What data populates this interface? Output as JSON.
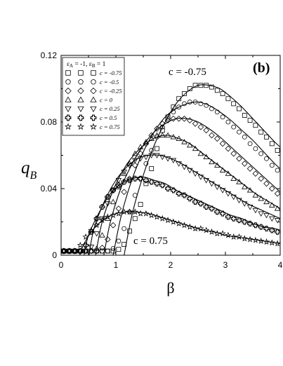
{
  "chart_data": {
    "type": "scatter",
    "panel_label": "(b)",
    "xlabel": "β",
    "ylabel": {
      "main": "q",
      "sub": "B"
    },
    "xlim": [
      0,
      4
    ],
    "ylim": [
      0,
      0.12
    ],
    "xticks": [
      0,
      1,
      2,
      3,
      4
    ],
    "xtick_labels": [
      "0",
      "1",
      "2",
      "3",
      "4"
    ],
    "yticks": [
      0,
      0.04,
      0.08,
      0.12
    ],
    "ytick_labels": [
      "0",
      "0.04",
      "0.08",
      "0.12"
    ],
    "grid": false,
    "legend": {
      "placement": "top-left",
      "header": {
        "sym1": "ε",
        "sub1": "A",
        "mid": " = -1, ",
        "sym2": "ε",
        "sub2": "B",
        "end": " = 1"
      },
      "entries": [
        {
          "marker": "square",
          "label": "c = -0.75"
        },
        {
          "marker": "circle",
          "label": "c = -0.5"
        },
        {
          "marker": "diamond",
          "label": "c = -0.25"
        },
        {
          "marker": "triangle-up",
          "label": "c = 0"
        },
        {
          "marker": "triangle-down",
          "label": "c = 0.25"
        },
        {
          "marker": "cross",
          "label": "c = 0.5"
        },
        {
          "marker": "star",
          "label": "c = 0.75"
        }
      ]
    },
    "annotations": [
      {
        "text": "c = -0.75",
        "x": 2.05,
        "y": 0.106
      },
      {
        "text": "c = 0.75",
        "x": 1.05,
        "y": 0.007
      }
    ],
    "series": [
      {
        "c": -0.75,
        "marker": "square",
        "x": [
          0.05,
          0.15,
          0.25,
          0.35,
          0.45,
          0.55,
          0.65,
          0.75,
          0.85,
          0.95,
          1.05,
          1.15,
          1.25,
          1.35,
          1.45,
          1.55,
          1.65,
          1.75,
          1.85,
          1.95,
          2.05,
          2.15,
          2.25,
          2.35,
          2.45,
          2.55,
          2.65,
          2.75,
          2.85,
          2.95,
          3.05,
          3.15,
          3.25,
          3.35,
          3.45,
          3.55,
          3.65,
          3.75,
          3.85,
          3.95
        ],
        "y": [
          0.0025,
          0.0025,
          0.0025,
          0.0025,
          0.0025,
          0.0025,
          0.0025,
          0.0025,
          0.0025,
          0.0025,
          0.0035,
          0.0065,
          0.0145,
          0.022,
          0.0305,
          0.043,
          0.052,
          0.064,
          0.075,
          0.083,
          0.089,
          0.094,
          0.097,
          0.1,
          0.102,
          0.102,
          0.102,
          0.101,
          0.099,
          0.097,
          0.094,
          0.091,
          0.088,
          0.084,
          0.081,
          0.078,
          0.074,
          0.071,
          0.067,
          0.063
        ]
      },
      {
        "c": -0.5,
        "marker": "circle",
        "x": [
          0.05,
          0.15,
          0.25,
          0.35,
          0.45,
          0.55,
          0.65,
          0.75,
          0.85,
          0.95,
          1.05,
          1.15,
          1.25,
          1.35,
          1.45,
          1.55,
          1.65,
          1.75,
          1.85,
          1.95,
          2.05,
          2.15,
          2.25,
          2.35,
          2.45,
          2.55,
          2.65,
          2.75,
          2.85,
          2.95,
          3.05,
          3.15,
          3.25,
          3.35,
          3.45,
          3.55,
          3.65,
          3.75,
          3.85,
          3.95
        ],
        "y": [
          0.0025,
          0.0025,
          0.0025,
          0.0025,
          0.0025,
          0.0025,
          0.0025,
          0.0025,
          0.0025,
          0.004,
          0.0085,
          0.016,
          0.026,
          0.036,
          0.046,
          0.055,
          0.063,
          0.071,
          0.077,
          0.082,
          0.086,
          0.089,
          0.091,
          0.092,
          0.092,
          0.091,
          0.09,
          0.088,
          0.086,
          0.083,
          0.08,
          0.077,
          0.074,
          0.071,
          0.067,
          0.064,
          0.061,
          0.058,
          0.054,
          0.051
        ]
      },
      {
        "c": -0.25,
        "marker": "diamond",
        "x": [
          0.05,
          0.15,
          0.25,
          0.35,
          0.45,
          0.55,
          0.65,
          0.75,
          0.85,
          0.95,
          1.05,
          1.15,
          1.25,
          1.35,
          1.45,
          1.55,
          1.65,
          1.75,
          1.85,
          1.95,
          2.05,
          2.15,
          2.25,
          2.35,
          2.45,
          2.55,
          2.65,
          2.75,
          2.85,
          2.95,
          3.05,
          3.15,
          3.25,
          3.35,
          3.45,
          3.55,
          3.65,
          3.75,
          3.85,
          3.95
        ],
        "y": [
          0.0025,
          0.0025,
          0.0025,
          0.0025,
          0.0025,
          0.0025,
          0.0025,
          0.0045,
          0.0095,
          0.018,
          0.028,
          0.038,
          0.046,
          0.054,
          0.061,
          0.067,
          0.072,
          0.076,
          0.079,
          0.081,
          0.082,
          0.082,
          0.082,
          0.081,
          0.079,
          0.077,
          0.075,
          0.072,
          0.07,
          0.067,
          0.064,
          0.061,
          0.058,
          0.055,
          0.052,
          0.049,
          0.046,
          0.043,
          0.04,
          0.037
        ]
      },
      {
        "c": 0,
        "marker": "triangle-up",
        "x": [
          0.05,
          0.15,
          0.25,
          0.35,
          0.45,
          0.55,
          0.65,
          0.75,
          0.85,
          0.95,
          1.05,
          1.15,
          1.25,
          1.35,
          1.45,
          1.55,
          1.65,
          1.75,
          1.85,
          1.95,
          2.05,
          2.15,
          2.25,
          2.35,
          2.45,
          2.55,
          2.65,
          2.75,
          2.85,
          2.95,
          3.05,
          3.15,
          3.25,
          3.35,
          3.45,
          3.55,
          3.65,
          3.75,
          3.85,
          3.95
        ],
        "y": [
          0.0025,
          0.0025,
          0.0025,
          0.0025,
          0.0025,
          0.0025,
          0.004,
          0.012,
          0.022,
          0.032,
          0.041,
          0.049,
          0.055,
          0.061,
          0.065,
          0.068,
          0.07,
          0.072,
          0.072,
          0.072,
          0.071,
          0.07,
          0.068,
          0.066,
          0.064,
          0.061,
          0.059,
          0.056,
          0.054,
          0.051,
          0.049,
          0.046,
          0.044,
          0.041,
          0.039,
          0.036,
          0.034,
          0.032,
          0.03,
          0.028
        ]
      },
      {
        "c": 0.25,
        "marker": "triangle-down",
        "x": [
          0.05,
          0.15,
          0.25,
          0.35,
          0.45,
          0.55,
          0.65,
          0.75,
          0.85,
          0.95,
          1.05,
          1.15,
          1.25,
          1.35,
          1.45,
          1.55,
          1.65,
          1.75,
          1.85,
          1.95,
          2.05,
          2.15,
          2.25,
          2.35,
          2.45,
          2.55,
          2.65,
          2.75,
          2.85,
          2.95,
          3.05,
          3.15,
          3.25,
          3.35,
          3.45,
          3.55,
          3.65,
          3.75,
          3.85,
          3.95
        ],
        "y": [
          0.0025,
          0.0025,
          0.0025,
          0.0025,
          0.0025,
          0.005,
          0.013,
          0.022,
          0.031,
          0.039,
          0.045,
          0.05,
          0.054,
          0.057,
          0.058,
          0.059,
          0.06,
          0.06,
          0.059,
          0.058,
          0.057,
          0.055,
          0.053,
          0.051,
          0.049,
          0.047,
          0.045,
          0.043,
          0.041,
          0.039,
          0.037,
          0.035,
          0.033,
          0.031,
          0.029,
          0.027,
          0.025,
          0.024,
          0.022,
          0.021
        ]
      },
      {
        "c": 0.5,
        "marker": "cross",
        "x": [
          0.05,
          0.15,
          0.25,
          0.35,
          0.45,
          0.55,
          0.65,
          0.75,
          0.85,
          0.95,
          1.05,
          1.15,
          1.25,
          1.35,
          1.45,
          1.55,
          1.65,
          1.75,
          1.85,
          1.95,
          2.05,
          2.15,
          2.25,
          2.35,
          2.45,
          2.55,
          2.65,
          2.75,
          2.85,
          2.95,
          3.05,
          3.15,
          3.25,
          3.35,
          3.45,
          3.55,
          3.65,
          3.75,
          3.85,
          3.95
        ],
        "y": [
          0.0025,
          0.0025,
          0.0025,
          0.0025,
          0.006,
          0.014,
          0.022,
          0.029,
          0.035,
          0.039,
          0.042,
          0.044,
          0.045,
          0.046,
          0.046,
          0.045,
          0.044,
          0.043,
          0.042,
          0.04,
          0.039,
          0.037,
          0.036,
          0.034,
          0.032,
          0.031,
          0.029,
          0.028,
          0.026,
          0.025,
          0.023,
          0.022,
          0.021,
          0.02,
          0.019,
          0.018,
          0.017,
          0.016,
          0.015,
          0.014
        ]
      },
      {
        "c": 0.75,
        "marker": "star",
        "x": [
          0.05,
          0.15,
          0.25,
          0.35,
          0.45,
          0.55,
          0.65,
          0.75,
          0.85,
          0.95,
          1.05,
          1.15,
          1.25,
          1.35,
          1.45,
          1.55,
          1.65,
          1.75,
          1.85,
          1.95,
          2.05,
          2.15,
          2.25,
          2.35,
          2.45,
          2.55,
          2.65,
          2.75,
          2.85,
          2.95,
          3.05,
          3.15,
          3.25,
          3.35,
          3.45,
          3.55,
          3.65,
          3.75,
          3.85,
          3.95
        ],
        "y": [
          0.0025,
          0.0025,
          0.0025,
          0.006,
          0.011,
          0.015,
          0.018,
          0.021,
          0.023,
          0.024,
          0.025,
          0.026,
          0.026,
          0.026,
          0.025,
          0.025,
          0.024,
          0.023,
          0.022,
          0.021,
          0.02,
          0.019,
          0.018,
          0.017,
          0.016,
          0.016,
          0.015,
          0.014,
          0.013,
          0.013,
          0.012,
          0.011,
          0.011,
          0.01,
          0.0095,
          0.009,
          0.0085,
          0.008,
          0.0075,
          0.007
        ]
      }
    ],
    "curves": [
      {
        "c": -0.75,
        "x": [
          1.15,
          1.3,
          1.5,
          1.7,
          1.9,
          2.1,
          2.3,
          2.5,
          2.7,
          2.9,
          3.1,
          3.3,
          3.5,
          3.7,
          3.9,
          4.0
        ],
        "y": [
          0.0,
          0.025,
          0.048,
          0.066,
          0.08,
          0.091,
          0.098,
          0.102,
          0.102,
          0.1,
          0.095,
          0.089,
          0.082,
          0.075,
          0.068,
          0.065
        ]
      },
      {
        "c": -0.5,
        "x": [
          0.95,
          1.1,
          1.3,
          1.5,
          1.7,
          1.9,
          2.1,
          2.3,
          2.5,
          2.7,
          2.9,
          3.1,
          3.3,
          3.5,
          3.7,
          3.9,
          4.0
        ],
        "y": [
          0.0,
          0.024,
          0.046,
          0.062,
          0.074,
          0.083,
          0.088,
          0.091,
          0.092,
          0.09,
          0.086,
          0.081,
          0.075,
          0.069,
          0.062,
          0.055,
          0.052
        ]
      },
      {
        "c": -0.25,
        "x": [
          0.78,
          0.9,
          1.1,
          1.3,
          1.5,
          1.7,
          1.9,
          2.1,
          2.3,
          2.5,
          2.7,
          2.9,
          3.1,
          3.3,
          3.5,
          3.7,
          3.9,
          4.0
        ],
        "y": [
          0.0,
          0.02,
          0.041,
          0.055,
          0.066,
          0.074,
          0.079,
          0.082,
          0.082,
          0.08,
          0.076,
          0.071,
          0.065,
          0.059,
          0.053,
          0.047,
          0.041,
          0.038
        ]
      },
      {
        "c": 0,
        "x": [
          0.63,
          0.75,
          0.95,
          1.15,
          1.35,
          1.55,
          1.75,
          1.95,
          2.15,
          2.35,
          2.55,
          2.75,
          2.95,
          3.15,
          3.35,
          3.55,
          3.75,
          3.95,
          4.0
        ],
        "y": [
          0.0,
          0.02,
          0.039,
          0.052,
          0.061,
          0.067,
          0.071,
          0.072,
          0.07,
          0.067,
          0.062,
          0.057,
          0.052,
          0.047,
          0.042,
          0.037,
          0.033,
          0.029,
          0.028
        ]
      },
      {
        "c": 0.25,
        "x": [
          0.51,
          0.6,
          0.8,
          1.0,
          1.2,
          1.4,
          1.6,
          1.8,
          2.0,
          2.2,
          2.4,
          2.6,
          2.8,
          3.0,
          3.2,
          3.4,
          3.6,
          3.8,
          4.0
        ],
        "y": [
          0.0,
          0.016,
          0.033,
          0.045,
          0.053,
          0.058,
          0.06,
          0.06,
          0.058,
          0.055,
          0.051,
          0.047,
          0.043,
          0.039,
          0.035,
          0.031,
          0.028,
          0.025,
          0.022
        ]
      },
      {
        "c": 0.5,
        "x": [
          0.42,
          0.5,
          0.7,
          0.9,
          1.1,
          1.3,
          1.5,
          1.7,
          1.9,
          2.1,
          2.3,
          2.5,
          2.7,
          2.9,
          3.1,
          3.3,
          3.5,
          3.7,
          3.9,
          4.0
        ],
        "y": [
          0.0,
          0.012,
          0.026,
          0.037,
          0.043,
          0.046,
          0.047,
          0.045,
          0.043,
          0.039,
          0.036,
          0.033,
          0.03,
          0.027,
          0.024,
          0.022,
          0.019,
          0.017,
          0.016,
          0.015
        ]
      },
      {
        "c": 0.75,
        "x": [
          0.34,
          0.42,
          0.6,
          0.8,
          1.0,
          1.2,
          1.4,
          1.6,
          1.8,
          2.0,
          2.2,
          2.4,
          2.6,
          2.8,
          3.0,
          3.2,
          3.4,
          3.6,
          3.8,
          4.0
        ],
        "y": [
          0.0,
          0.007,
          0.016,
          0.022,
          0.025,
          0.026,
          0.026,
          0.025,
          0.023,
          0.021,
          0.019,
          0.017,
          0.015,
          0.014,
          0.012,
          0.011,
          0.01,
          0.009,
          0.008,
          0.007
        ]
      }
    ]
  }
}
